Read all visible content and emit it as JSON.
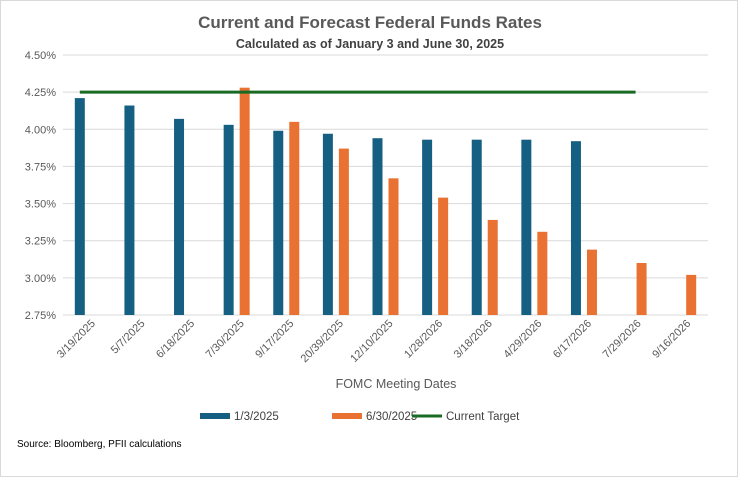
{
  "chart_data": {
    "type": "bar",
    "title": "Current and Forecast Federal Funds Rates",
    "subtitle": "Calculated as of January 3 and June 30, 2025",
    "xlabel": "FOMC Meeting Dates",
    "ylabel": "",
    "ylim": [
      2.75,
      4.5
    ],
    "yticks": [
      "2.75%",
      "3.00%",
      "3.25%",
      "3.50%",
      "3.75%",
      "4.00%",
      "4.25%",
      "4.50%"
    ],
    "categories": [
      "3/19/2025",
      "5/7/2025",
      "6/18/2025",
      "7/30/2025",
      "9/17/2025",
      "20/39/2025",
      "12/10/2025",
      "1/28/2026",
      "3/18/2026",
      "4/29/2026",
      "6/17/2026",
      "7/29/2026",
      "9/16/2026"
    ],
    "series": [
      {
        "name": "1/3/2025",
        "type": "bar",
        "color": "#156082",
        "values": [
          4.21,
          4.16,
          4.07,
          4.03,
          3.99,
          3.97,
          3.94,
          3.93,
          3.93,
          3.93,
          3.92,
          null,
          null
        ]
      },
      {
        "name": "6/30/2025",
        "type": "bar",
        "color": "#E97132",
        "values": [
          null,
          null,
          null,
          4.28,
          4.05,
          3.87,
          3.67,
          3.54,
          3.39,
          3.31,
          3.19,
          3.1,
          3.02
        ]
      },
      {
        "name": "Current Target",
        "type": "line",
        "color": "#196B24",
        "value": 4.25,
        "from_category": "3/19/2025",
        "to_category": "7/29/2026"
      }
    ],
    "grid": true,
    "legend_position": "bottom",
    "source_note": "Source:  Bloomberg, PFII calculations"
  }
}
